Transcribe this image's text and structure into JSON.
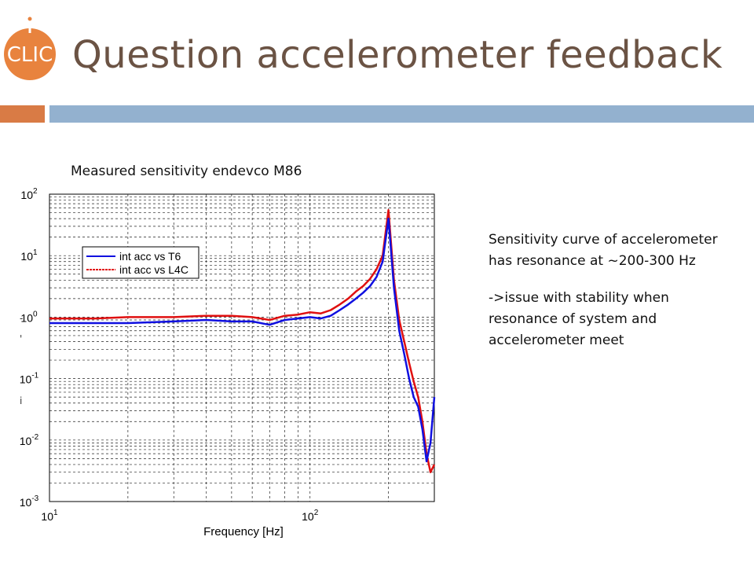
{
  "slide": {
    "title": "Question accelerometer feedback",
    "logo_text": "CLIC"
  },
  "chart_caption": "Measured sensitivity endevco M86",
  "description": {
    "paragraph1": "Sensitivity curve of accelerometer has resonance at ~200-300 Hz",
    "paragraph2": "->issue with stability when resonance of system and accelerometer meet"
  },
  "margin_marks": [
    "-",
    "'",
    "i"
  ],
  "colors": {
    "title": "#6b5344",
    "accent_orange": "#d97b45",
    "accent_blue": "#93b1cf",
    "series1": "#1010e0",
    "series2": "#e01010"
  },
  "chart_data": {
    "type": "line",
    "x_scale": "log",
    "y_scale": "log",
    "xlim": [
      10,
      300
    ],
    "ylim": [
      0.001,
      100
    ],
    "xlabel": "Frequency [Hz]",
    "ylabel": "",
    "grid": true,
    "legend_position": "top-left",
    "x_ticks": [
      {
        "value": 10,
        "base": "10",
        "exp": "1"
      },
      {
        "value": 100,
        "base": "10",
        "exp": "2"
      }
    ],
    "y_ticks": [
      {
        "value": 100,
        "base": "10",
        "exp": "2"
      },
      {
        "value": 10,
        "base": "10",
        "exp": "1"
      },
      {
        "value": 1,
        "base": "10",
        "exp": "0"
      },
      {
        "value": 0.1,
        "base": "10",
        "exp": "-1"
      },
      {
        "value": 0.01,
        "base": "10",
        "exp": "-2"
      },
      {
        "value": 0.001,
        "base": "10",
        "exp": "-3"
      }
    ],
    "series": [
      {
        "name": "int acc vs T6",
        "color": "#1010e0",
        "x": [
          10,
          15,
          20,
          30,
          40,
          50,
          60,
          70,
          80,
          90,
          100,
          110,
          120,
          130,
          140,
          150,
          160,
          170,
          180,
          190,
          200,
          210,
          220,
          230,
          240,
          250,
          260,
          270,
          280,
          290,
          300
        ],
        "y": [
          0.8,
          0.8,
          0.8,
          0.85,
          0.9,
          0.85,
          0.85,
          0.75,
          0.9,
          0.95,
          1.0,
          0.95,
          1.05,
          1.3,
          1.6,
          2.0,
          2.5,
          3.2,
          4.5,
          8.0,
          40.0,
          3.0,
          0.6,
          0.25,
          0.1,
          0.05,
          0.035,
          0.015,
          0.0045,
          0.009,
          0.05
        ]
      },
      {
        "name": "int acc vs L4C",
        "color": "#e01010",
        "x": [
          10,
          15,
          20,
          30,
          40,
          50,
          60,
          70,
          80,
          90,
          100,
          110,
          120,
          130,
          140,
          150,
          160,
          170,
          180,
          190,
          200,
          210,
          220,
          230,
          240,
          250,
          260,
          270,
          280,
          290,
          300
        ],
        "y": [
          0.95,
          0.95,
          1.0,
          1.0,
          1.05,
          1.05,
          1.0,
          0.9,
          1.05,
          1.1,
          1.2,
          1.15,
          1.3,
          1.6,
          2.0,
          2.6,
          3.2,
          4.2,
          6.0,
          10.0,
          55.0,
          4.0,
          0.9,
          0.4,
          0.18,
          0.09,
          0.05,
          0.02,
          0.006,
          0.003,
          0.004
        ]
      }
    ]
  }
}
